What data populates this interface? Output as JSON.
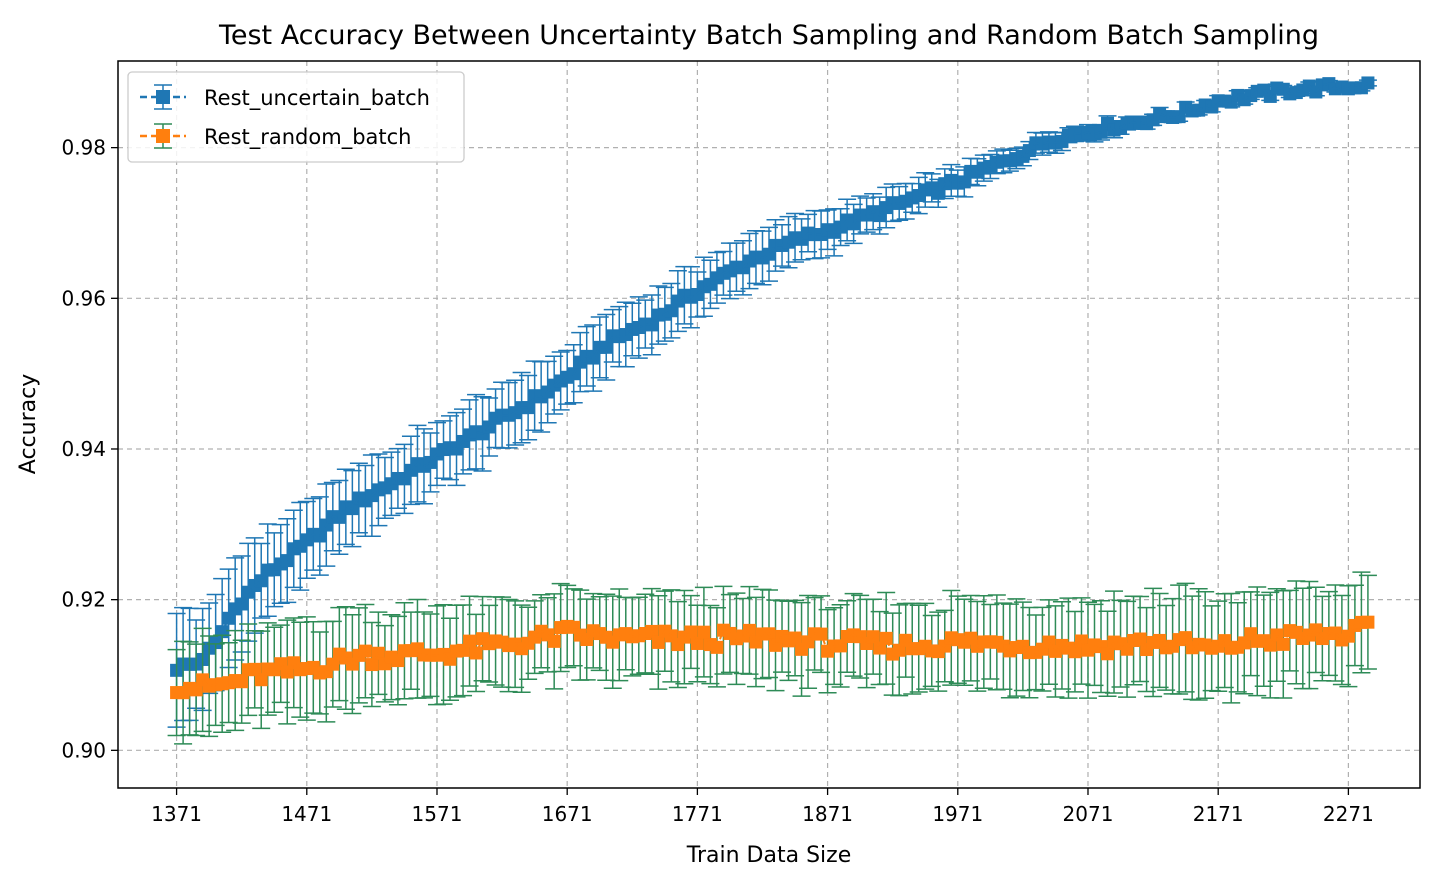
{
  "chart_data": {
    "type": "line",
    "title": "Test Accuracy Between Uncertainty Batch Sampling and Random Batch Sampling",
    "xlabel": "Train Data Size",
    "ylabel": "Accuracy",
    "xlim": [
      1326,
      2326
    ],
    "ylim": [
      0.895,
      0.9915
    ],
    "xticks": [
      1371,
      1471,
      1571,
      1671,
      1771,
      1871,
      1971,
      2071,
      2171,
      2271
    ],
    "yticks": [
      0.9,
      0.92,
      0.94,
      0.96,
      0.98
    ],
    "ytick_labels": [
      "0.90",
      "0.92",
      "0.94",
      "0.96",
      "0.98"
    ],
    "grid": true,
    "legend_position": "top-left",
    "x_start": 1371,
    "x_end": 2286,
    "x_step": 5,
    "series": [
      {
        "name": "Rest_uncertain_batch",
        "color": "#1f77b4",
        "errorbar_color": "#1f77b4",
        "marker": "square",
        "linestyle": "dashed",
        "keypoints": [
          [
            1371,
            0.911
          ],
          [
            1386,
            0.9115
          ],
          [
            1401,
            0.914
          ],
          [
            1411,
            0.9175
          ],
          [
            1421,
            0.92
          ],
          [
            1441,
            0.9235
          ],
          [
            1471,
            0.9275
          ],
          [
            1501,
            0.932
          ],
          [
            1531,
            0.935
          ],
          [
            1571,
            0.939
          ],
          [
            1611,
            0.943
          ],
          [
            1641,
            0.946
          ],
          [
            1671,
            0.9495
          ],
          [
            1701,
            0.954
          ],
          [
            1741,
            0.9575
          ],
          [
            1771,
            0.961
          ],
          [
            1811,
            0.965
          ],
          [
            1851,
            0.968
          ],
          [
            1871,
            0.969
          ],
          [
            1911,
            0.9715
          ],
          [
            1971,
            0.9755
          ],
          [
            2011,
            0.9785
          ],
          [
            2041,
            0.981
          ],
          [
            2071,
            0.9822
          ],
          [
            2111,
            0.9835
          ],
          [
            2141,
            0.9845
          ],
          [
            2171,
            0.9862
          ],
          [
            2201,
            0.987
          ],
          [
            2231,
            0.9877
          ],
          [
            2286,
            0.9883
          ]
        ],
        "error_keypoints": [
          [
            1371,
            0.007
          ],
          [
            1421,
            0.006
          ],
          [
            1471,
            0.005
          ],
          [
            1571,
            0.0045
          ],
          [
            1671,
            0.004
          ],
          [
            1771,
            0.0035
          ],
          [
            1871,
            0.0028
          ],
          [
            1971,
            0.0018
          ],
          [
            2071,
            0.001
          ],
          [
            2171,
            0.0006
          ],
          [
            2286,
            0.0004
          ]
        ]
      },
      {
        "name": "Rest_random_batch",
        "color": "#ff7f0e",
        "errorbar_color": "#2e8b57",
        "marker": "square",
        "linestyle": "dashed",
        "keypoints": [
          [
            1371,
            0.9088
          ],
          [
            1391,
            0.9083
          ],
          [
            1411,
            0.9088
          ],
          [
            1431,
            0.91
          ],
          [
            1471,
            0.9108
          ],
          [
            1511,
            0.9125
          ],
          [
            1571,
            0.9128
          ],
          [
            1611,
            0.9138
          ],
          [
            1641,
            0.9145
          ],
          [
            1671,
            0.9155
          ],
          [
            1711,
            0.9148
          ],
          [
            1771,
            0.9148
          ],
          [
            1831,
            0.9148
          ],
          [
            1871,
            0.9143
          ],
          [
            1931,
            0.9138
          ],
          [
            1971,
            0.9143
          ],
          [
            2031,
            0.914
          ],
          [
            2071,
            0.9138
          ],
          [
            2131,
            0.9143
          ],
          [
            2171,
            0.9133
          ],
          [
            2191,
            0.9145
          ],
          [
            2231,
            0.915
          ],
          [
            2271,
            0.9155
          ],
          [
            2286,
            0.916
          ]
        ],
        "error_keypoints": [
          [
            1371,
            0.006
          ],
          [
            1471,
            0.006
          ],
          [
            1671,
            0.0055
          ],
          [
            1971,
            0.0055
          ],
          [
            2171,
            0.0065
          ],
          [
            2286,
            0.006
          ]
        ]
      }
    ]
  }
}
